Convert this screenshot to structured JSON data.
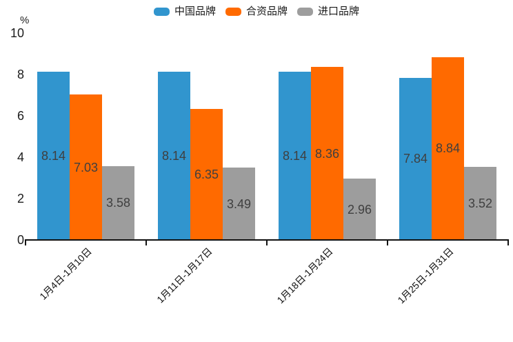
{
  "chart_data": {
    "type": "bar",
    "ylabel": "%",
    "ylim": [
      0,
      10
    ],
    "yticks": [
      0,
      2,
      4,
      6,
      8,
      10
    ],
    "grid": false,
    "legend_position": "top",
    "value_label_decimals": 2,
    "categories": [
      "1月4日-1月10日",
      "1月11日-1月17日",
      "1月18日-1月24日",
      "1月25日-1月31日"
    ],
    "series": [
      {
        "name": "中国品牌",
        "color": "#3195ce",
        "values": [
          8.14,
          8.14,
          8.14,
          7.84
        ]
      },
      {
        "name": "合资品牌",
        "color": "#ff6a00",
        "values": [
          7.03,
          6.35,
          8.36,
          8.84
        ]
      },
      {
        "name": "进口品牌",
        "color": "#9d9d9d",
        "values": [
          3.58,
          3.49,
          2.96,
          3.52
        ]
      }
    ]
  }
}
